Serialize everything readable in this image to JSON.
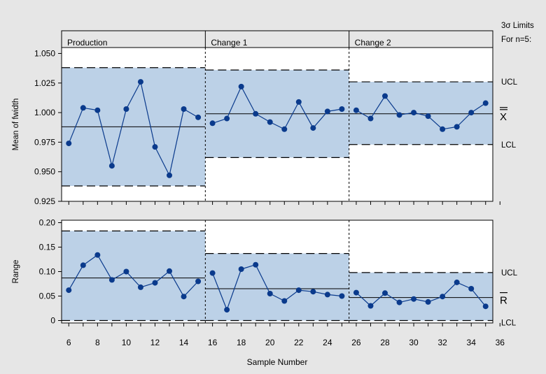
{
  "chart_data": [
    {
      "type": "line",
      "chart": "xbar",
      "ylabel": "Mean of fwidth",
      "ylim": [
        0.925,
        1.055
      ],
      "yticks": [
        0.925,
        0.95,
        0.975,
        1.0,
        1.025,
        1.05
      ],
      "x": [
        6,
        7,
        8,
        9,
        10,
        11,
        12,
        13,
        14,
        15,
        16,
        17,
        18,
        19,
        20,
        21,
        22,
        23,
        24,
        25,
        26,
        27,
        28,
        29,
        30,
        31,
        32,
        33,
        34,
        35
      ],
      "values": [
        0.974,
        1.004,
        1.002,
        0.955,
        1.003,
        1.026,
        0.971,
        0.947,
        1.003,
        0.996,
        0.991,
        0.995,
        1.022,
        0.999,
        0.992,
        0.986,
        1.009,
        0.987,
        1.001,
        1.003,
        1.002,
        0.995,
        1.014,
        0.998,
        1.0,
        0.997,
        0.986,
        0.988,
        1.0,
        1.008
      ],
      "phases": [
        {
          "label": "Production",
          "ucl": 1.038,
          "center": 0.988,
          "lcl": 0.938
        },
        {
          "label": "Change 1",
          "ucl": 1.036,
          "center": 0.999,
          "lcl": 0.962
        },
        {
          "label": "Change 2",
          "ucl": 1.026,
          "center": 0.999,
          "lcl": 0.973
        }
      ]
    },
    {
      "type": "line",
      "chart": "range",
      "ylabel": "Range",
      "ylim": [
        -0.005,
        0.205
      ],
      "yticks": [
        0,
        0.05,
        0.1,
        0.15,
        0.2
      ],
      "ytick_labels": [
        "0",
        "0.05",
        "0.10",
        "0.15",
        "0.20"
      ],
      "x": [
        6,
        7,
        8,
        9,
        10,
        11,
        12,
        13,
        14,
        15,
        16,
        17,
        18,
        19,
        20,
        21,
        22,
        23,
        24,
        25,
        26,
        27,
        28,
        29,
        30,
        31,
        32,
        33,
        34,
        35
      ],
      "values": [
        0.062,
        0.113,
        0.134,
        0.083,
        0.1,
        0.068,
        0.077,
        0.101,
        0.049,
        0.08,
        0.097,
        0.022,
        0.105,
        0.114,
        0.055,
        0.04,
        0.062,
        0.059,
        0.053,
        0.05,
        0.057,
        0.03,
        0.056,
        0.037,
        0.044,
        0.038,
        0.049,
        0.078,
        0.065,
        0.029
      ],
      "phases": [
        {
          "label": "Production",
          "ucl": 0.183,
          "center": 0.087,
          "lcl": 0
        },
        {
          "label": "Change 1",
          "ucl": 0.137,
          "center": 0.065,
          "lcl": 0
        },
        {
          "label": "Change 2",
          "ucl": 0.098,
          "center": 0.047,
          "lcl": 0
        }
      ]
    }
  ],
  "xaxis": {
    "label": "Sample Number",
    "xlim": [
      5.5,
      35.5
    ],
    "ticks": [
      6,
      8,
      10,
      12,
      14,
      16,
      18,
      20,
      22,
      24,
      26,
      28,
      30,
      32,
      34,
      36
    ],
    "minor_ticks": [
      7,
      9,
      11,
      13,
      15,
      17,
      19,
      21,
      23,
      25,
      27,
      29,
      31,
      33,
      35
    ]
  },
  "phase_boundaries": [
    15.5,
    25.5
  ],
  "limits_note": [
    "3σ Limits",
    "For n=5:"
  ],
  "right_labels": {
    "xbar": {
      "ucl": "UCL",
      "center": "X",
      "lcl": "LCL"
    },
    "range": {
      "ucl": "UCL",
      "center": "R",
      "lcl": "LCL"
    }
  },
  "colors": {
    "band": "#bcd1e7",
    "marker": "#0a3a8c",
    "line": "#0a3a8c",
    "background": "#e6e6e6",
    "plot": "#ffffff"
  }
}
